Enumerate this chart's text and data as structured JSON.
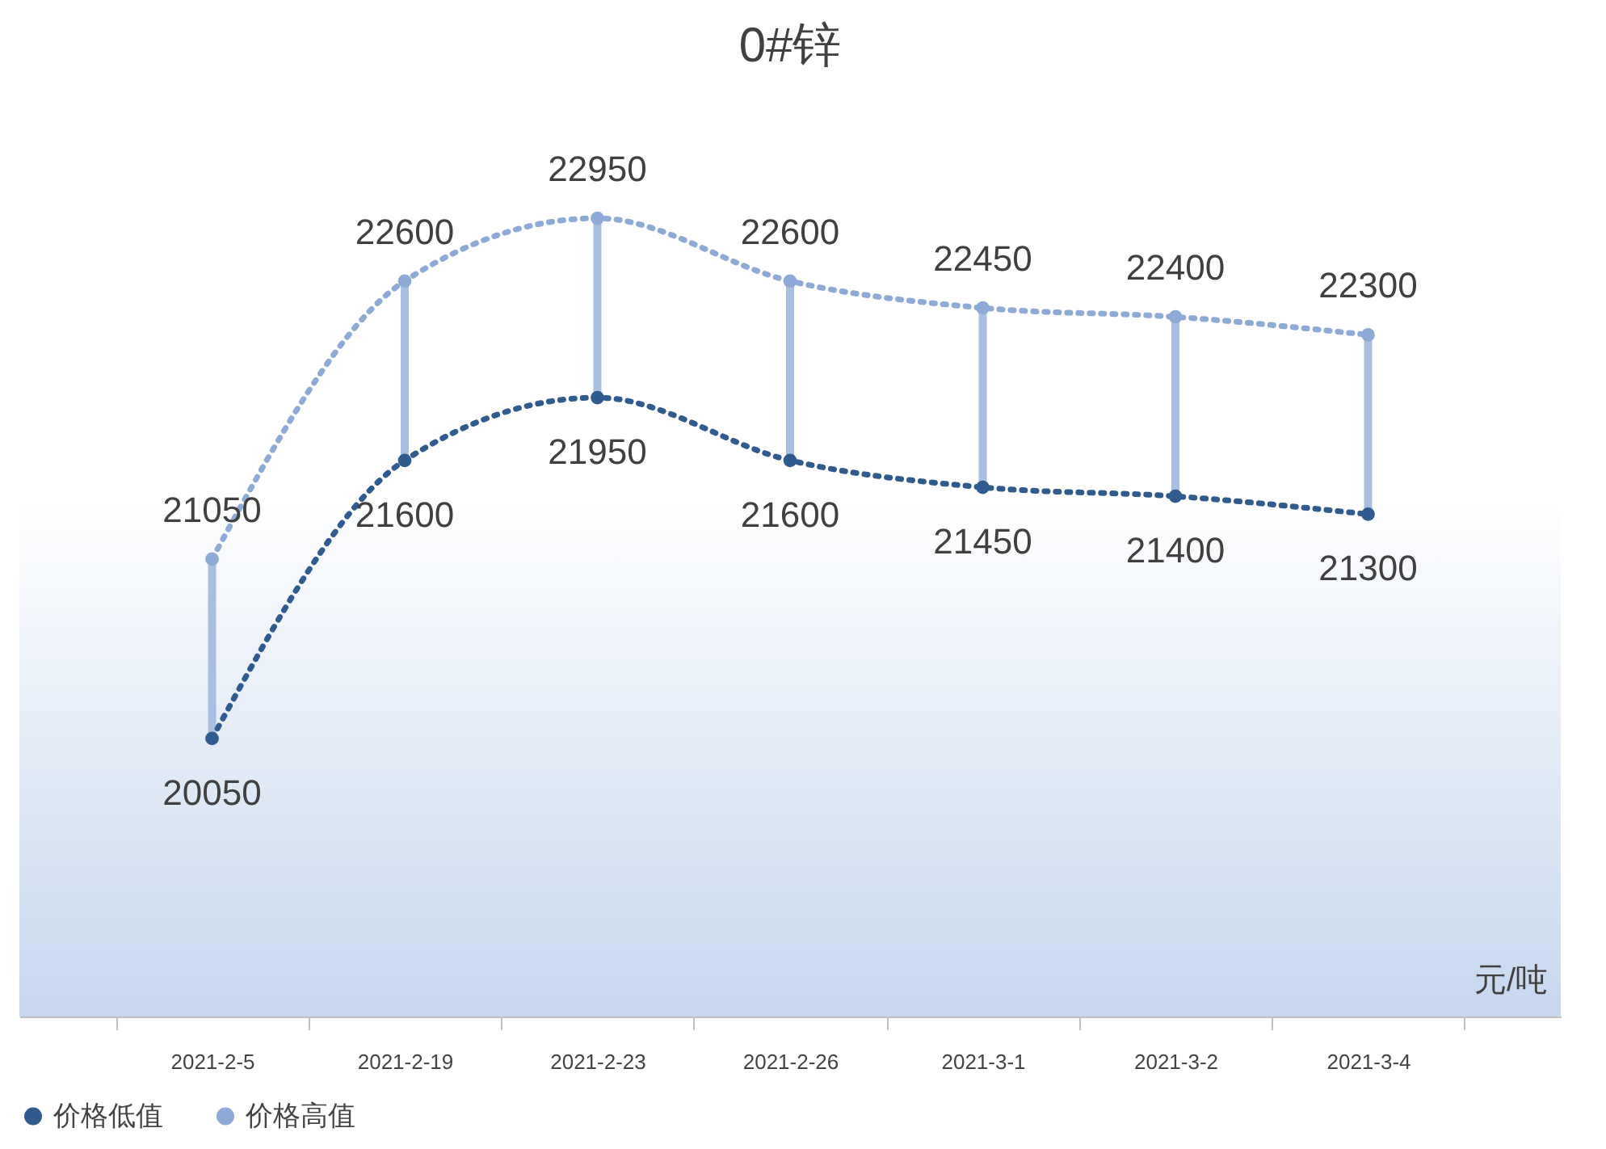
{
  "chart_data": {
    "type": "line",
    "title": "0#锌",
    "categories": [
      "2021-2-5",
      "2021-2-19",
      "2021-2-23",
      "2021-2-26",
      "2021-3-1",
      "2021-3-2",
      "2021-3-4"
    ],
    "series": [
      {
        "name": "价格低值",
        "color": "#2f5b8f",
        "values": [
          20050,
          21600,
          21950,
          21600,
          21450,
          21400,
          21300
        ]
      },
      {
        "name": "价格高值",
        "color": "#8eaad6",
        "values": [
          21050,
          22600,
          22950,
          22600,
          22450,
          22400,
          22300
        ]
      }
    ],
    "ylim": [
      18500,
      23500
    ],
    "data_labels": true,
    "marker": "circle",
    "line_style": "dotted",
    "legend": "bottom",
    "tick_labels": "x",
    "annotations": [
      "元/吨"
    ]
  }
}
